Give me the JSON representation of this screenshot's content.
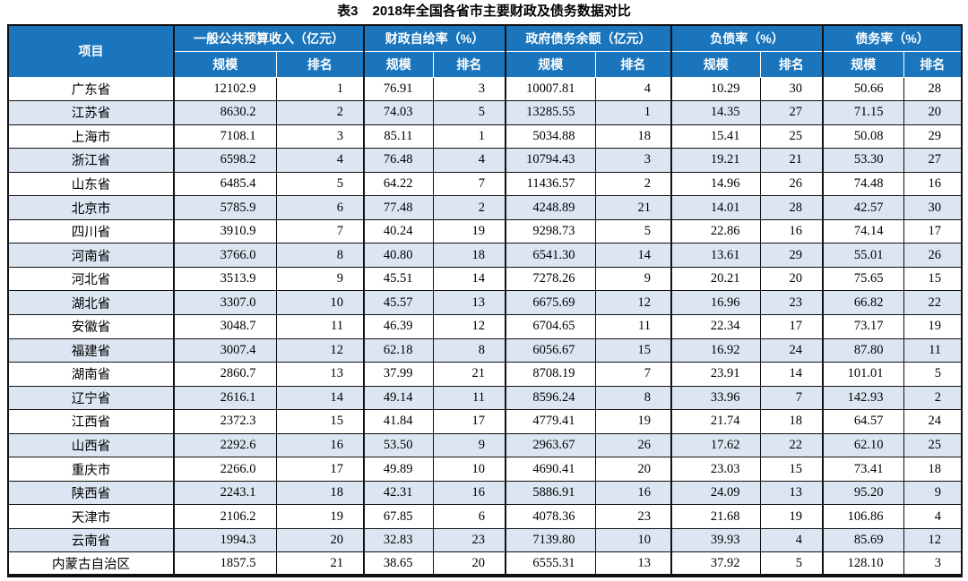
{
  "title": {
    "label": "表3",
    "text": "2018年全国各省市主要财政及债务数据对比"
  },
  "colors": {
    "header_bg": "#1a75bc",
    "alt_row_bg": "#dce6f2",
    "border": "#111111",
    "header_text": "#ffffff"
  },
  "table": {
    "item_header": "项目",
    "groups": [
      "一般公共预算收入（亿元）",
      "财政自给率（%）",
      "政府债务余额（亿元）",
      "负债率（%）",
      "债务率（%）"
    ],
    "sub_headers": [
      "规模",
      "排名"
    ],
    "rows": [
      {
        "name": "广东省",
        "values": [
          "12102.9",
          "1",
          "76.91",
          "3",
          "10007.81",
          "4",
          "10.29",
          "30",
          "50.66",
          "28"
        ]
      },
      {
        "name": "江苏省",
        "values": [
          "8630.2",
          "2",
          "74.03",
          "5",
          "13285.55",
          "1",
          "14.35",
          "27",
          "71.15",
          "20"
        ]
      },
      {
        "name": "上海市",
        "values": [
          "7108.1",
          "3",
          "85.11",
          "1",
          "5034.88",
          "18",
          "15.41",
          "25",
          "50.08",
          "29"
        ]
      },
      {
        "name": "浙江省",
        "values": [
          "6598.2",
          "4",
          "76.48",
          "4",
          "10794.43",
          "3",
          "19.21",
          "21",
          "53.30",
          "27"
        ]
      },
      {
        "name": "山东省",
        "values": [
          "6485.4",
          "5",
          "64.22",
          "7",
          "11436.57",
          "2",
          "14.96",
          "26",
          "74.48",
          "16"
        ]
      },
      {
        "name": "北京市",
        "values": [
          "5785.9",
          "6",
          "77.48",
          "2",
          "4248.89",
          "21",
          "14.01",
          "28",
          "42.57",
          "30"
        ]
      },
      {
        "name": "四川省",
        "values": [
          "3910.9",
          "7",
          "40.24",
          "19",
          "9298.73",
          "5",
          "22.86",
          "16",
          "74.14",
          "17"
        ]
      },
      {
        "name": "河南省",
        "values": [
          "3766.0",
          "8",
          "40.80",
          "18",
          "6541.30",
          "14",
          "13.61",
          "29",
          "55.01",
          "26"
        ]
      },
      {
        "name": "河北省",
        "values": [
          "3513.9",
          "9",
          "45.51",
          "14",
          "7278.26",
          "9",
          "20.21",
          "20",
          "75.65",
          "15"
        ]
      },
      {
        "name": "湖北省",
        "values": [
          "3307.0",
          "10",
          "45.57",
          "13",
          "6675.69",
          "12",
          "16.96",
          "23",
          "66.82",
          "22"
        ]
      },
      {
        "name": "安徽省",
        "values": [
          "3048.7",
          "11",
          "46.39",
          "12",
          "6704.65",
          "11",
          "22.34",
          "17",
          "73.17",
          "19"
        ]
      },
      {
        "name": "福建省",
        "values": [
          "3007.4",
          "12",
          "62.18",
          "8",
          "6056.67",
          "15",
          "16.92",
          "24",
          "87.80",
          "11"
        ]
      },
      {
        "name": "湖南省",
        "values": [
          "2860.7",
          "13",
          "37.99",
          "21",
          "8708.19",
          "7",
          "23.91",
          "14",
          "101.01",
          "5"
        ]
      },
      {
        "name": "辽宁省",
        "values": [
          "2616.1",
          "14",
          "49.14",
          "11",
          "8596.24",
          "8",
          "33.96",
          "7",
          "142.93",
          "2"
        ]
      },
      {
        "name": "江西省",
        "values": [
          "2372.3",
          "15",
          "41.84",
          "17",
          "4779.41",
          "19",
          "21.74",
          "18",
          "64.57",
          "24"
        ]
      },
      {
        "name": "山西省",
        "values": [
          "2292.6",
          "16",
          "53.50",
          "9",
          "2963.67",
          "26",
          "17.62",
          "22",
          "62.10",
          "25"
        ]
      },
      {
        "name": "重庆市",
        "values": [
          "2266.0",
          "17",
          "49.89",
          "10",
          "4690.41",
          "20",
          "23.03",
          "15",
          "73.41",
          "18"
        ]
      },
      {
        "name": "陕西省",
        "values": [
          "2243.1",
          "18",
          "42.31",
          "16",
          "5886.91",
          "16",
          "24.09",
          "13",
          "95.20",
          "9"
        ]
      },
      {
        "name": "天津市",
        "values": [
          "2106.2",
          "19",
          "67.85",
          "6",
          "4078.36",
          "23",
          "21.68",
          "19",
          "106.86",
          "4"
        ]
      },
      {
        "name": "云南省",
        "values": [
          "1994.3",
          "20",
          "32.83",
          "23",
          "7139.80",
          "10",
          "39.93",
          "4",
          "85.69",
          "12"
        ]
      },
      {
        "name": "内蒙古自治区",
        "values": [
          "1857.5",
          "21",
          "38.65",
          "20",
          "6555.31",
          "13",
          "37.92",
          "5",
          "128.10",
          "3"
        ]
      }
    ]
  }
}
